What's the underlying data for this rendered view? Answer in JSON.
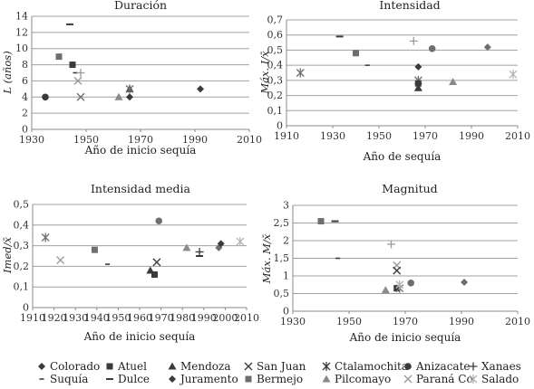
{
  "colors": {
    "dark": "#3a3a3a",
    "medium": "#6e6e6e",
    "light": "#9a9a9a",
    "lighter": "#b3b3b3"
  },
  "legend": {
    "rows": [
      [
        {
          "name": "Colorado",
          "marker": "diamond",
          "color": "#3a3a3a"
        },
        {
          "name": "Atuel",
          "marker": "square",
          "color": "#3a3a3a"
        },
        {
          "name": "Mendoza",
          "marker": "triangle",
          "color": "#3a3a3a"
        },
        {
          "name": "San Juan",
          "marker": "x",
          "color": "#3a3a3a"
        },
        {
          "name": "Ctalamochita",
          "marker": "asterisk",
          "color": "#3a3a3a"
        },
        {
          "name": "Anizacate",
          "marker": "circle",
          "color": "#3a3a3a"
        },
        {
          "name": "Xanaes",
          "marker": "plus",
          "color": "#3a3a3a"
        }
      ],
      [
        {
          "name": "Suquía",
          "marker": "shortdash",
          "color": "#3a3a3a"
        },
        {
          "name": "Dulce",
          "marker": "dash",
          "color": "#3a3a3a"
        },
        {
          "name": "Juramento",
          "marker": "diamond",
          "color": "#3a3a3a"
        },
        {
          "name": "Bermejo",
          "marker": "square",
          "color": "#6e6e6e"
        },
        {
          "name": "Pilcomayo",
          "marker": "triangle",
          "color": "#8a8a8a"
        },
        {
          "name": "Paraná Co",
          "marker": "x",
          "color": "#9a9a9a"
        },
        {
          "name": "Salado",
          "marker": "asterisk",
          "color": "#b3b3b3"
        }
      ]
    ]
  },
  "chart_data": [
    {
      "type": "scatter",
      "title": "Duración",
      "xlabel": "Año de inicio sequía",
      "ylabel": "L (años)",
      "xlim": [
        1930,
        2010
      ],
      "ylim": [
        0,
        14
      ],
      "xticks": [
        1930,
        1950,
        1970,
        1990,
        2010
      ],
      "yticks": [
        0,
        2,
        4,
        6,
        8,
        10,
        12,
        14
      ],
      "grid": true,
      "points": [
        {
          "series": "Colorado",
          "x": 1935,
          "y": 4,
          "marker": "circle",
          "color": "#3a3a3a"
        },
        {
          "series": "Atuel",
          "x": 1940,
          "y": 9,
          "marker": "square",
          "color": "#6e6e6e"
        },
        {
          "series": "Atuel",
          "x": 1945,
          "y": 8,
          "marker": "square",
          "color": "#3a3a3a"
        },
        {
          "series": "Dulce",
          "x": 1944,
          "y": 13,
          "marker": "dash",
          "color": "#3a3a3a"
        },
        {
          "series": "Suquía",
          "x": 1946,
          "y": 7,
          "marker": "shortdash",
          "color": "#3a3a3a"
        },
        {
          "series": "Xanaes",
          "x": 1948,
          "y": 7,
          "marker": "plus",
          "color": "#9a9a9a"
        },
        {
          "series": "Paraná Co",
          "x": 1947,
          "y": 6,
          "marker": "x",
          "color": "#9a9a9a"
        },
        {
          "series": "San Juan",
          "x": 1948,
          "y": 4,
          "marker": "x",
          "color": "#6e6e6e"
        },
        {
          "series": "Pilcomayo",
          "x": 1962,
          "y": 4,
          "marker": "triangle",
          "color": "#8a8a8a"
        },
        {
          "series": "Colorado",
          "x": 1966,
          "y": 4,
          "marker": "diamond",
          "color": "#3a3a3a"
        },
        {
          "series": "Mendoza",
          "x": 1966,
          "y": 5,
          "marker": "triangle",
          "color": "#3a3a3a"
        },
        {
          "series": "Ctalamochita",
          "x": 1966,
          "y": 5,
          "marker": "asterisk",
          "color": "#6e6e6e"
        },
        {
          "series": "Juramento",
          "x": 1992,
          "y": 5,
          "marker": "diamond",
          "color": "#3a3a3a"
        }
      ]
    },
    {
      "type": "scatter",
      "title": "Intensidad",
      "xlabel": "Año de sequía",
      "ylabel": "Máx. I/x̄",
      "xlim": [
        1910,
        2010
      ],
      "ylim": [
        0,
        0.7
      ],
      "xticks": [
        1910,
        1930,
        1950,
        1970,
        1990,
        2010
      ],
      "yticks": [
        0,
        0.1,
        0.2,
        0.3,
        0.4,
        0.5,
        0.6,
        0.7
      ],
      "grid": true,
      "points": [
        {
          "series": "Salado",
          "x": 1916,
          "y": 0.35,
          "marker": "asterisk",
          "color": "#6e6e6e"
        },
        {
          "series": "Dulce",
          "x": 1933,
          "y": 0.59,
          "marker": "dash",
          "color": "#3a3a3a"
        },
        {
          "series": "Bermejo",
          "x": 1940,
          "y": 0.48,
          "marker": "square",
          "color": "#6e6e6e"
        },
        {
          "series": "Suquía",
          "x": 1945,
          "y": 0.4,
          "marker": "shortdash",
          "color": "#3a3a3a"
        },
        {
          "series": "Xanaes",
          "x": 1965,
          "y": 0.56,
          "marker": "plus",
          "color": "#9a9a9a"
        },
        {
          "series": "Juramento",
          "x": 1967,
          "y": 0.39,
          "marker": "diamond",
          "color": "#3a3a3a"
        },
        {
          "series": "Ctalamochita",
          "x": 1967,
          "y": 0.3,
          "marker": "asterisk",
          "color": "#6e6e6e"
        },
        {
          "series": "Atuel",
          "x": 1967,
          "y": 0.28,
          "marker": "square",
          "color": "#3a3a3a"
        },
        {
          "series": "Mendoza",
          "x": 1967,
          "y": 0.25,
          "marker": "triangle",
          "color": "#3a3a3a"
        },
        {
          "series": "Anizacate",
          "x": 1973,
          "y": 0.51,
          "marker": "circle",
          "color": "#6e6e6e"
        },
        {
          "series": "Pilcomayo",
          "x": 1982,
          "y": 0.29,
          "marker": "triangle",
          "color": "#8a8a8a"
        },
        {
          "series": "Juramento",
          "x": 1997,
          "y": 0.52,
          "marker": "diamond",
          "color": "#6e6e6e"
        },
        {
          "series": "Salado",
          "x": 2008,
          "y": 0.34,
          "marker": "asterisk",
          "color": "#b3b3b3"
        }
      ]
    },
    {
      "type": "scatter",
      "title": "Intensidad media",
      "xlabel": "Año de inicio sequía",
      "ylabel": "Imed/x̄",
      "xlim": [
        1910,
        2010
      ],
      "ylim": [
        0,
        0.5
      ],
      "xticks": [
        1910,
        1920,
        1930,
        1940,
        1950,
        1960,
        1970,
        1980,
        1990,
        2000,
        2010
      ],
      "yticks": [
        0,
        0.1,
        0.2,
        0.3,
        0.4,
        0.5
      ],
      "grid": true,
      "points": [
        {
          "series": "Ctalamochita",
          "x": 1916,
          "y": 0.34,
          "marker": "asterisk",
          "color": "#6e6e6e"
        },
        {
          "series": "Paraná Co",
          "x": 1923,
          "y": 0.23,
          "marker": "x",
          "color": "#9a9a9a"
        },
        {
          "series": "Bermejo",
          "x": 1939,
          "y": 0.28,
          "marker": "square",
          "color": "#6e6e6e"
        },
        {
          "series": "Suquía",
          "x": 1945,
          "y": 0.21,
          "marker": "shortdash",
          "color": "#3a3a3a"
        },
        {
          "series": "Mendoza",
          "x": 1965,
          "y": 0.18,
          "marker": "triangle",
          "color": "#3a3a3a"
        },
        {
          "series": "Atuel",
          "x": 1967,
          "y": 0.16,
          "marker": "square",
          "color": "#3a3a3a"
        },
        {
          "series": "San Juan",
          "x": 1968,
          "y": 0.22,
          "marker": "x",
          "color": "#3a3a3a"
        },
        {
          "series": "Anizacate",
          "x": 1969,
          "y": 0.42,
          "marker": "circle",
          "color": "#6e6e6e"
        },
        {
          "series": "Pilcomayo",
          "x": 1982,
          "y": 0.29,
          "marker": "triangle",
          "color": "#8a8a8a"
        },
        {
          "series": "Dulce",
          "x": 1988,
          "y": 0.25,
          "marker": "dash",
          "color": "#3a3a3a"
        },
        {
          "series": "Xanaes",
          "x": 1988,
          "y": 0.27,
          "marker": "plus",
          "color": "#3a3a3a"
        },
        {
          "series": "Colorado",
          "x": 1997,
          "y": 0.29,
          "marker": "diamond",
          "color": "#6e6e6e"
        },
        {
          "series": "Juramento",
          "x": 1998,
          "y": 0.31,
          "marker": "diamond",
          "color": "#3a3a3a"
        },
        {
          "series": "Salado",
          "x": 2007,
          "y": 0.32,
          "marker": "asterisk",
          "color": "#b3b3b3"
        }
      ]
    },
    {
      "type": "scatter",
      "title": "Magnitud",
      "xlabel": "Año de inicio sequía",
      "ylabel": "Máx. M/x̄",
      "xlim": [
        1930,
        2010
      ],
      "ylim": [
        0,
        3
      ],
      "xticks": [
        1930,
        1950,
        1970,
        1990,
        2010
      ],
      "yticks": [
        0,
        0.5,
        1,
        1.5,
        2,
        2.5,
        3
      ],
      "grid": true,
      "points": [
        {
          "series": "Bermejo",
          "x": 1940,
          "y": 2.55,
          "marker": "square",
          "color": "#6e6e6e"
        },
        {
          "series": "Dulce",
          "x": 1945,
          "y": 2.55,
          "marker": "dash",
          "color": "#3a3a3a"
        },
        {
          "series": "Suquía",
          "x": 1946,
          "y": 1.5,
          "marker": "shortdash",
          "color": "#3a3a3a"
        },
        {
          "series": "Xanaes",
          "x": 1965,
          "y": 1.9,
          "marker": "plus",
          "color": "#9a9a9a"
        },
        {
          "series": "Paraná Co",
          "x": 1967,
          "y": 1.3,
          "marker": "x",
          "color": "#9a9a9a"
        },
        {
          "series": "San Juan",
          "x": 1967,
          "y": 1.15,
          "marker": "x",
          "color": "#3a3a3a"
        },
        {
          "series": "Pilcomayo",
          "x": 1963,
          "y": 0.6,
          "marker": "triangle",
          "color": "#8a8a8a"
        },
        {
          "series": "Atuel",
          "x": 1967,
          "y": 0.65,
          "marker": "square",
          "color": "#3a3a3a"
        },
        {
          "series": "Ctalamochita",
          "x": 1968,
          "y": 0.65,
          "marker": "asterisk",
          "color": "#6e6e6e"
        },
        {
          "series": "Salado",
          "x": 1968,
          "y": 0.75,
          "marker": "asterisk",
          "color": "#b3b3b3"
        },
        {
          "series": "Anizacate",
          "x": 1972,
          "y": 0.8,
          "marker": "circle",
          "color": "#6e6e6e"
        },
        {
          "series": "Juramento",
          "x": 1991,
          "y": 0.82,
          "marker": "diamond",
          "color": "#6e6e6e"
        }
      ]
    }
  ]
}
